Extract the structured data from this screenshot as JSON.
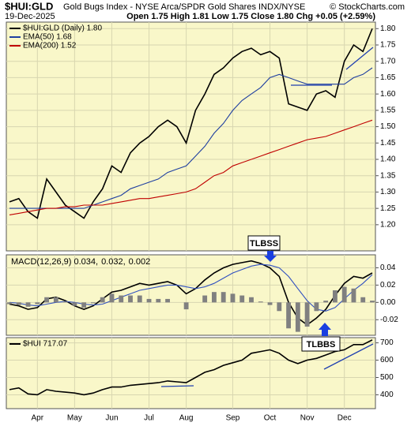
{
  "chart_data": [
    {
      "type": "line",
      "title": "$HUI:GLD",
      "subtitle": "Gold Bugs Index - NYSE Arca/SPDR Gold Shares INDX/NYSE",
      "source": "© StockCharts.com",
      "date": "19-Dec-2025",
      "quote": "Open 1.75 High 1.81 Low 1.75 Close 1.80 Chg +0.05 (+2.59%)",
      "ylim": [
        1.12,
        1.82
      ],
      "yticks": [
        {
          "value": 1.2,
          "label": "1.20"
        },
        1.25,
        {
          "value": 1.3,
          "label": "1.30"
        },
        1.35,
        {
          "value": 1.4,
          "label": "1.40"
        },
        1.45,
        {
          "value": 1.5,
          "label": "1.50"
        },
        1.55,
        {
          "value": 1.6,
          "label": "1.60"
        },
        1.65,
        {
          "value": 1.7,
          "label": "1.70"
        },
        1.75,
        {
          "value": 1.8,
          "label": "1.80"
        }
      ],
      "series": [
        {
          "name": "$HUI:GLD (Daily) 1.80",
          "color": "#000000",
          "values": [
            1.27,
            1.28,
            1.24,
            1.22,
            1.34,
            1.3,
            1.26,
            1.24,
            1.22,
            1.27,
            1.31,
            1.38,
            1.36,
            1.42,
            1.45,
            1.47,
            1.5,
            1.52,
            1.5,
            1.45,
            1.55,
            1.6,
            1.66,
            1.68,
            1.71,
            1.73,
            1.74,
            1.72,
            1.73,
            1.71,
            1.57,
            1.56,
            1.55,
            1.6,
            1.61,
            1.59,
            1.7,
            1.75,
            1.73,
            1.8
          ]
        },
        {
          "name": "EMA(50) 1.68",
          "color": "#1f3fa0",
          "values": [
            1.25,
            1.25,
            1.25,
            1.25,
            1.25,
            1.25,
            1.25,
            1.25,
            1.25,
            1.26,
            1.27,
            1.28,
            1.29,
            1.31,
            1.32,
            1.33,
            1.34,
            1.36,
            1.37,
            1.38,
            1.41,
            1.44,
            1.48,
            1.51,
            1.55,
            1.58,
            1.6,
            1.62,
            1.65,
            1.66,
            1.65,
            1.64,
            1.63,
            1.63,
            1.63,
            1.63,
            1.63,
            1.65,
            1.66,
            1.68
          ]
        },
        {
          "name": "EMA(200) 1.52",
          "color": "#c00000",
          "values": [
            1.23,
            1.235,
            1.24,
            1.245,
            1.25,
            1.25,
            1.255,
            1.255,
            1.26,
            1.26,
            1.26,
            1.265,
            1.27,
            1.275,
            1.28,
            1.28,
            1.285,
            1.29,
            1.295,
            1.3,
            1.31,
            1.33,
            1.35,
            1.36,
            1.38,
            1.39,
            1.4,
            1.41,
            1.42,
            1.43,
            1.44,
            1.45,
            1.46,
            1.465,
            1.47,
            1.48,
            1.49,
            1.5,
            1.51,
            1.52
          ]
        }
      ]
    },
    {
      "type": "line",
      "ylim": [
        -0.038,
        0.055
      ],
      "yticks": [
        0.04,
        0.02,
        {
          "value": 0,
          "label": "0.00"
        },
        -0.02
      ],
      "annotations": [
        "TLBSS",
        "TLBBS"
      ],
      "series": [
        {
          "name": "MACD(12,26,9) 0.034,",
          "color": "#000000",
          "values": [
            -0.002,
            -0.004,
            -0.008,
            -0.006,
            0.004,
            0.006,
            0.002,
            -0.004,
            -0.008,
            -0.004,
            0.004,
            0.012,
            0.014,
            0.018,
            0.022,
            0.02,
            0.022,
            0.024,
            0.02,
            0.01,
            0.016,
            0.026,
            0.034,
            0.04,
            0.044,
            0.046,
            0.048,
            0.045,
            0.04,
            0.03,
            0.0,
            -0.018,
            -0.026,
            -0.018,
            -0.008,
            0.008,
            0.022,
            0.03,
            0.028,
            0.034
          ]
        },
        {
          "name": "0.032,",
          "color": "#3050c0",
          "values": [
            0.0,
            -0.001,
            -0.003,
            -0.004,
            -0.002,
            0.0,
            0.001,
            0.0,
            -0.002,
            -0.003,
            -0.002,
            0.002,
            0.006,
            0.01,
            0.014,
            0.016,
            0.018,
            0.02,
            0.02,
            0.018,
            0.016,
            0.018,
            0.022,
            0.028,
            0.034,
            0.038,
            0.042,
            0.044,
            0.043,
            0.04,
            0.03,
            0.016,
            0.002,
            -0.008,
            -0.01,
            -0.006,
            0.004,
            0.014,
            0.022,
            0.032
          ]
        },
        {
          "name": "0.002",
          "color": "#808080",
          "kind": "bar",
          "values": [
            -0.002,
            -0.003,
            -0.005,
            -0.002,
            0.006,
            0.006,
            0.001,
            -0.004,
            -0.006,
            -0.001,
            0.006,
            0.01,
            0.008,
            0.008,
            0.008,
            0.004,
            0.004,
            0.004,
            0.0,
            -0.008,
            0.0,
            0.008,
            0.012,
            0.012,
            0.01,
            0.008,
            0.006,
            0.001,
            -0.003,
            -0.01,
            -0.03,
            -0.034,
            -0.028,
            -0.01,
            0.002,
            0.014,
            0.018,
            0.016,
            0.006,
            0.002
          ]
        }
      ]
    },
    {
      "type": "line",
      "ylim": [
        320,
        730
      ],
      "yticks": [
        700,
        600,
        500,
        400
      ],
      "categories": [
        null,
        null,
        null,
        "Apr",
        null,
        null,
        null,
        "May",
        null,
        null,
        null,
        "Jun",
        null,
        null,
        null,
        "Jul",
        null,
        null,
        null,
        "Aug",
        null,
        null,
        null,
        null,
        "Sep",
        null,
        null,
        null,
        "Oct",
        null,
        null,
        null,
        "Nov",
        null,
        null,
        null,
        "Dec",
        null,
        null,
        null
      ],
      "series": [
        {
          "name": "$HUI 717.07",
          "color": "#000000",
          "values": [
            430,
            440,
            405,
            400,
            430,
            420,
            415,
            410,
            400,
            410,
            430,
            445,
            445,
            455,
            460,
            465,
            470,
            480,
            475,
            470,
            500,
            530,
            545,
            570,
            585,
            600,
            640,
            650,
            660,
            640,
            600,
            580,
            600,
            610,
            630,
            650,
            660,
            690,
            690,
            717
          ]
        }
      ]
    }
  ]
}
